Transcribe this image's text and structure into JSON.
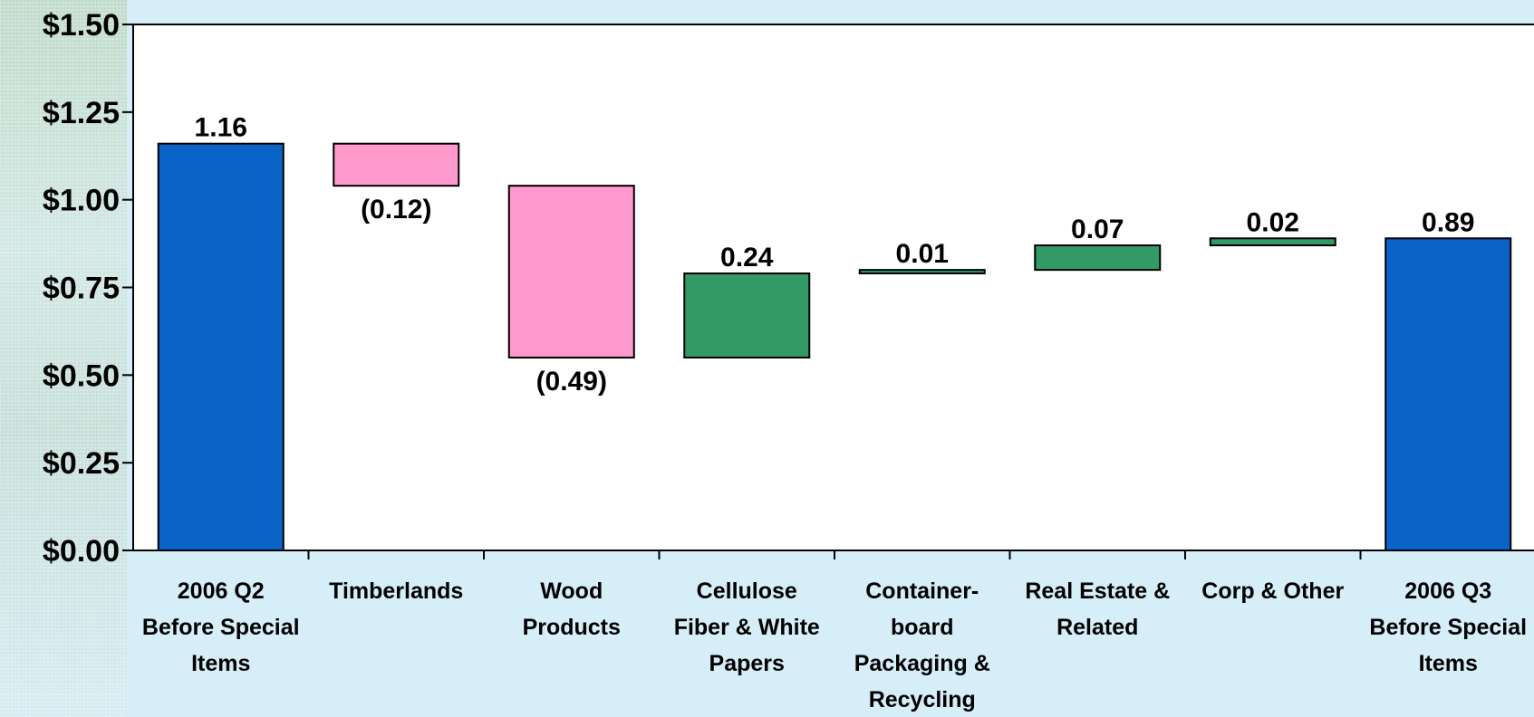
{
  "chart_data": {
    "type": "bar",
    "subtype": "waterfall",
    "title": "",
    "xlabel": "",
    "ylabel": "",
    "ylim": [
      0,
      1.5
    ],
    "y_ticks": [
      "$0.00",
      "$0.25",
      "$0.50",
      "$0.75",
      "$1.00",
      "$1.25",
      "$1.50"
    ],
    "y_tick_values": [
      0,
      0.25,
      0.5,
      0.75,
      1.0,
      1.25,
      1.5
    ],
    "grid": false,
    "colors": {
      "total": "#0a64c8",
      "decrease": "#ff99cc",
      "increase": "#339966",
      "plot_bg": "#ffffff",
      "page_bg": "#d6eef8"
    },
    "categories": [
      {
        "label": [
          "2006 Q2",
          "Before Special",
          "Items"
        ],
        "value": 1.16,
        "label_text": "1.16",
        "kind": "total"
      },
      {
        "label": [
          "Timberlands"
        ],
        "value": -0.12,
        "label_text": "(0.12)",
        "kind": "decrease"
      },
      {
        "label": [
          "Wood",
          "Products"
        ],
        "value": -0.49,
        "label_text": "(0.49)",
        "kind": "decrease"
      },
      {
        "label": [
          "Cellulose",
          "Fiber & White",
          "Papers"
        ],
        "value": 0.24,
        "label_text": "0.24",
        "kind": "increase"
      },
      {
        "label": [
          "Container-",
          "board",
          "Packaging &",
          "Recycling"
        ],
        "value": 0.01,
        "label_text": "0.01",
        "kind": "increase"
      },
      {
        "label": [
          "Real Estate &",
          "Related"
        ],
        "value": 0.07,
        "label_text": "0.07",
        "kind": "increase"
      },
      {
        "label": [
          "Corp & Other"
        ],
        "value": 0.02,
        "label_text": "0.02",
        "kind": "increase"
      },
      {
        "label": [
          "2006 Q3",
          "Before Special",
          "Items"
        ],
        "value": 0.89,
        "label_text": "0.89",
        "kind": "total"
      }
    ]
  }
}
